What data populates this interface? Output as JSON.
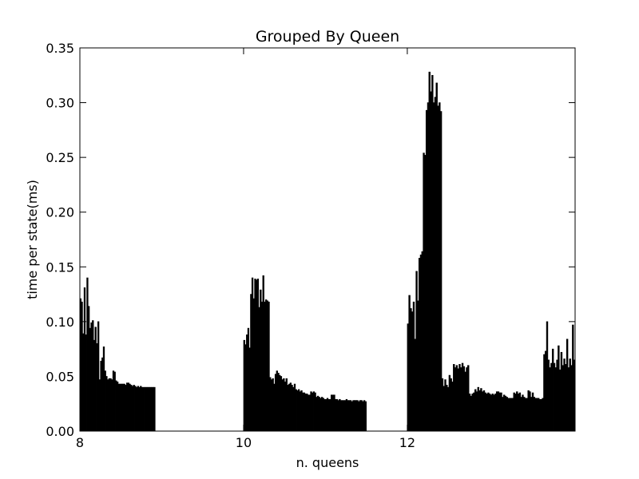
{
  "chart_data": {
    "type": "bar",
    "title": "Grouped By Queen",
    "xlabel": "n. queens",
    "ylabel": "time per state(ms)",
    "xlim": [
      8,
      14.05
    ],
    "ylim": [
      0,
      0.35
    ],
    "x_ticks": [
      8,
      10,
      12
    ],
    "y_ticks": [
      0.0,
      0.05,
      0.1,
      0.15,
      0.2,
      0.25,
      0.3,
      0.35
    ],
    "y_tick_labels": [
      "0.00",
      "0.05",
      "0.10",
      "0.15",
      "0.20",
      "0.25",
      "0.30",
      "0.35"
    ],
    "grid": false,
    "bar_color": "#000000",
    "series": [
      {
        "group": "8",
        "x_start": 8.0,
        "x_end": 8.92,
        "values": [
          0.121,
          0.118,
          0.089,
          0.131,
          0.088,
          0.14,
          0.114,
          0.094,
          0.099,
          0.101,
          0.083,
          0.095,
          0.08,
          0.1,
          0.047,
          0.064,
          0.067,
          0.077,
          0.055,
          0.05,
          0.047,
          0.048,
          0.048,
          0.047,
          0.055,
          0.054,
          0.046,
          0.045,
          0.043,
          0.043,
          0.043,
          0.043,
          0.043,
          0.042,
          0.044,
          0.044,
          0.043,
          0.042,
          0.041,
          0.042,
          0.041,
          0.04,
          0.041,
          0.04,
          0.041,
          0.04,
          0.04,
          0.04,
          0.04,
          0.04,
          0.04,
          0.04,
          0.04,
          0.04,
          0.04
        ]
      },
      {
        "group": "10",
        "x_start": 10.0,
        "x_end": 11.5,
        "values": [
          0.083,
          0.079,
          0.088,
          0.094,
          0.076,
          0.125,
          0.14,
          0.121,
          0.139,
          0.138,
          0.139,
          0.113,
          0.129,
          0.118,
          0.142,
          0.118,
          0.12,
          0.119,
          0.118,
          0.049,
          0.047,
          0.048,
          0.043,
          0.052,
          0.055,
          0.053,
          0.051,
          0.05,
          0.047,
          0.048,
          0.045,
          0.048,
          0.042,
          0.043,
          0.044,
          0.042,
          0.04,
          0.043,
          0.038,
          0.037,
          0.038,
          0.036,
          0.037,
          0.035,
          0.035,
          0.034,
          0.034,
          0.033,
          0.033,
          0.036,
          0.035,
          0.036,
          0.035,
          0.031,
          0.032,
          0.031,
          0.03,
          0.031,
          0.03,
          0.029,
          0.029,
          0.03,
          0.029,
          0.029,
          0.033,
          0.033,
          0.033,
          0.029,
          0.029,
          0.028,
          0.029,
          0.028,
          0.028,
          0.028,
          0.028,
          0.029,
          0.028,
          0.028,
          0.028,
          0.027,
          0.028,
          0.028,
          0.028,
          0.028,
          0.027,
          0.028,
          0.028,
          0.027,
          0.028,
          0.027
        ]
      },
      {
        "group": "12",
        "x_start": 12.0,
        "x_end": 14.05,
        "values": [
          0.098,
          0.124,
          0.112,
          0.109,
          0.118,
          0.084,
          0.146,
          0.119,
          0.158,
          0.161,
          0.164,
          0.254,
          0.252,
          0.293,
          0.3,
          0.328,
          0.31,
          0.325,
          0.3,
          0.305,
          0.318,
          0.297,
          0.3,
          0.292,
          0.048,
          0.041,
          0.047,
          0.042,
          0.04,
          0.051,
          0.048,
          0.045,
          0.061,
          0.058,
          0.06,
          0.057,
          0.061,
          0.058,
          0.062,
          0.059,
          0.054,
          0.058,
          0.06,
          0.034,
          0.032,
          0.034,
          0.035,
          0.038,
          0.036,
          0.04,
          0.037,
          0.039,
          0.036,
          0.037,
          0.035,
          0.034,
          0.035,
          0.034,
          0.033,
          0.034,
          0.033,
          0.034,
          0.036,
          0.036,
          0.035,
          0.035,
          0.031,
          0.033,
          0.032,
          0.031,
          0.03,
          0.03,
          0.03,
          0.03,
          0.035,
          0.034,
          0.036,
          0.034,
          0.035,
          0.031,
          0.033,
          0.031,
          0.03,
          0.03,
          0.037,
          0.036,
          0.031,
          0.035,
          0.031,
          0.03,
          0.03,
          0.03,
          0.029,
          0.029,
          0.03,
          0.07,
          0.073,
          0.1,
          0.065,
          0.058,
          0.062,
          0.075,
          0.062,
          0.058,
          0.065,
          0.078,
          0.056,
          0.072,
          0.06,
          0.066,
          0.061,
          0.084,
          0.058,
          0.066,
          0.06,
          0.097,
          0.065
        ]
      }
    ]
  }
}
